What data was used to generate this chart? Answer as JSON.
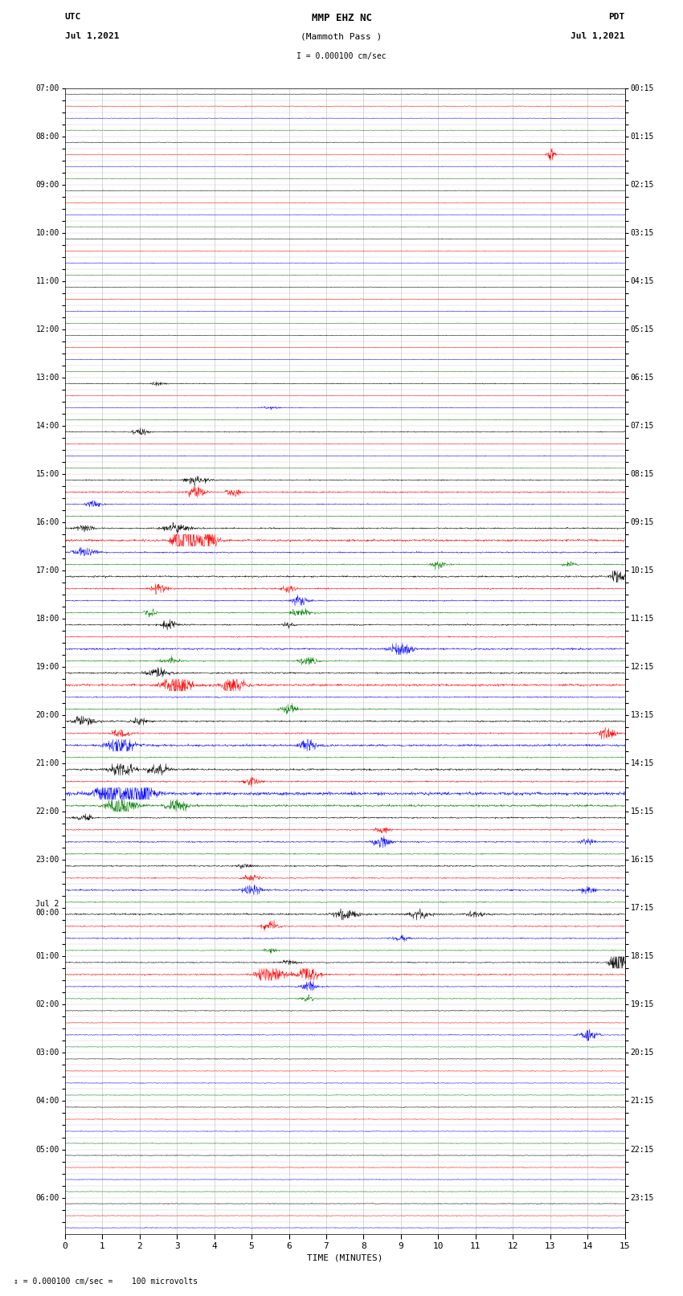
{
  "title_line1": "MMP EHZ NC",
  "title_line2": "(Mammoth Pass )",
  "scale_text": "I = 0.000100 cm/sec",
  "footer_text": "⇕ = 0.000100 cm/sec =    100 microvolts",
  "utc_label1": "UTC",
  "utc_label2": "Jul 1,2021",
  "pdt_label1": "PDT",
  "pdt_label2": "Jul 1,2021",
  "xlabel": "TIME (MINUTES)",
  "left_times": [
    "07:00",
    "",
    "",
    "",
    "08:00",
    "",
    "",
    "",
    "09:00",
    "",
    "",
    "",
    "10:00",
    "",
    "",
    "",
    "11:00",
    "",
    "",
    "",
    "12:00",
    "",
    "",
    "",
    "13:00",
    "",
    "",
    "",
    "14:00",
    "",
    "",
    "",
    "15:00",
    "",
    "",
    "",
    "16:00",
    "",
    "",
    "",
    "17:00",
    "",
    "",
    "",
    "18:00",
    "",
    "",
    "",
    "19:00",
    "",
    "",
    "",
    "20:00",
    "",
    "",
    "",
    "21:00",
    "",
    "",
    "",
    "22:00",
    "",
    "",
    "",
    "23:00",
    "",
    "",
    "",
    "Jul 2\n00:00",
    "",
    "",
    "",
    "01:00",
    "",
    "",
    "",
    "02:00",
    "",
    "",
    "",
    "03:00",
    "",
    "",
    "",
    "04:00",
    "",
    "",
    "",
    "05:00",
    "",
    "",
    "",
    "06:00",
    "",
    ""
  ],
  "right_times": [
    "00:15",
    "",
    "",
    "",
    "01:15",
    "",
    "",
    "",
    "02:15",
    "",
    "",
    "",
    "03:15",
    "",
    "",
    "",
    "04:15",
    "",
    "",
    "",
    "05:15",
    "",
    "",
    "",
    "06:15",
    "",
    "",
    "",
    "07:15",
    "",
    "",
    "",
    "08:15",
    "",
    "",
    "",
    "09:15",
    "",
    "",
    "",
    "10:15",
    "",
    "",
    "",
    "11:15",
    "",
    "",
    "",
    "12:15",
    "",
    "",
    "",
    "13:15",
    "",
    "",
    "",
    "14:15",
    "",
    "",
    "",
    "15:15",
    "",
    "",
    "",
    "16:15",
    "",
    "",
    "",
    "17:15",
    "",
    "",
    "",
    "18:15",
    "",
    "",
    "",
    "19:15",
    "",
    "",
    "",
    "20:15",
    "",
    "",
    "",
    "21:15",
    "",
    "",
    "",
    "22:15",
    "",
    "",
    "",
    "23:15",
    "",
    ""
  ],
  "trace_colors": [
    "black",
    "red",
    "blue",
    "green"
  ],
  "background_color": "white",
  "grid_color": "#aaaaaa",
  "xmin": 0,
  "xmax": 15,
  "xticks": [
    0,
    1,
    2,
    3,
    4,
    5,
    6,
    7,
    8,
    9,
    10,
    11,
    12,
    13,
    14,
    15
  ],
  "n_rows": 95,
  "base_noise": 0.05,
  "noise_seed": 12345
}
